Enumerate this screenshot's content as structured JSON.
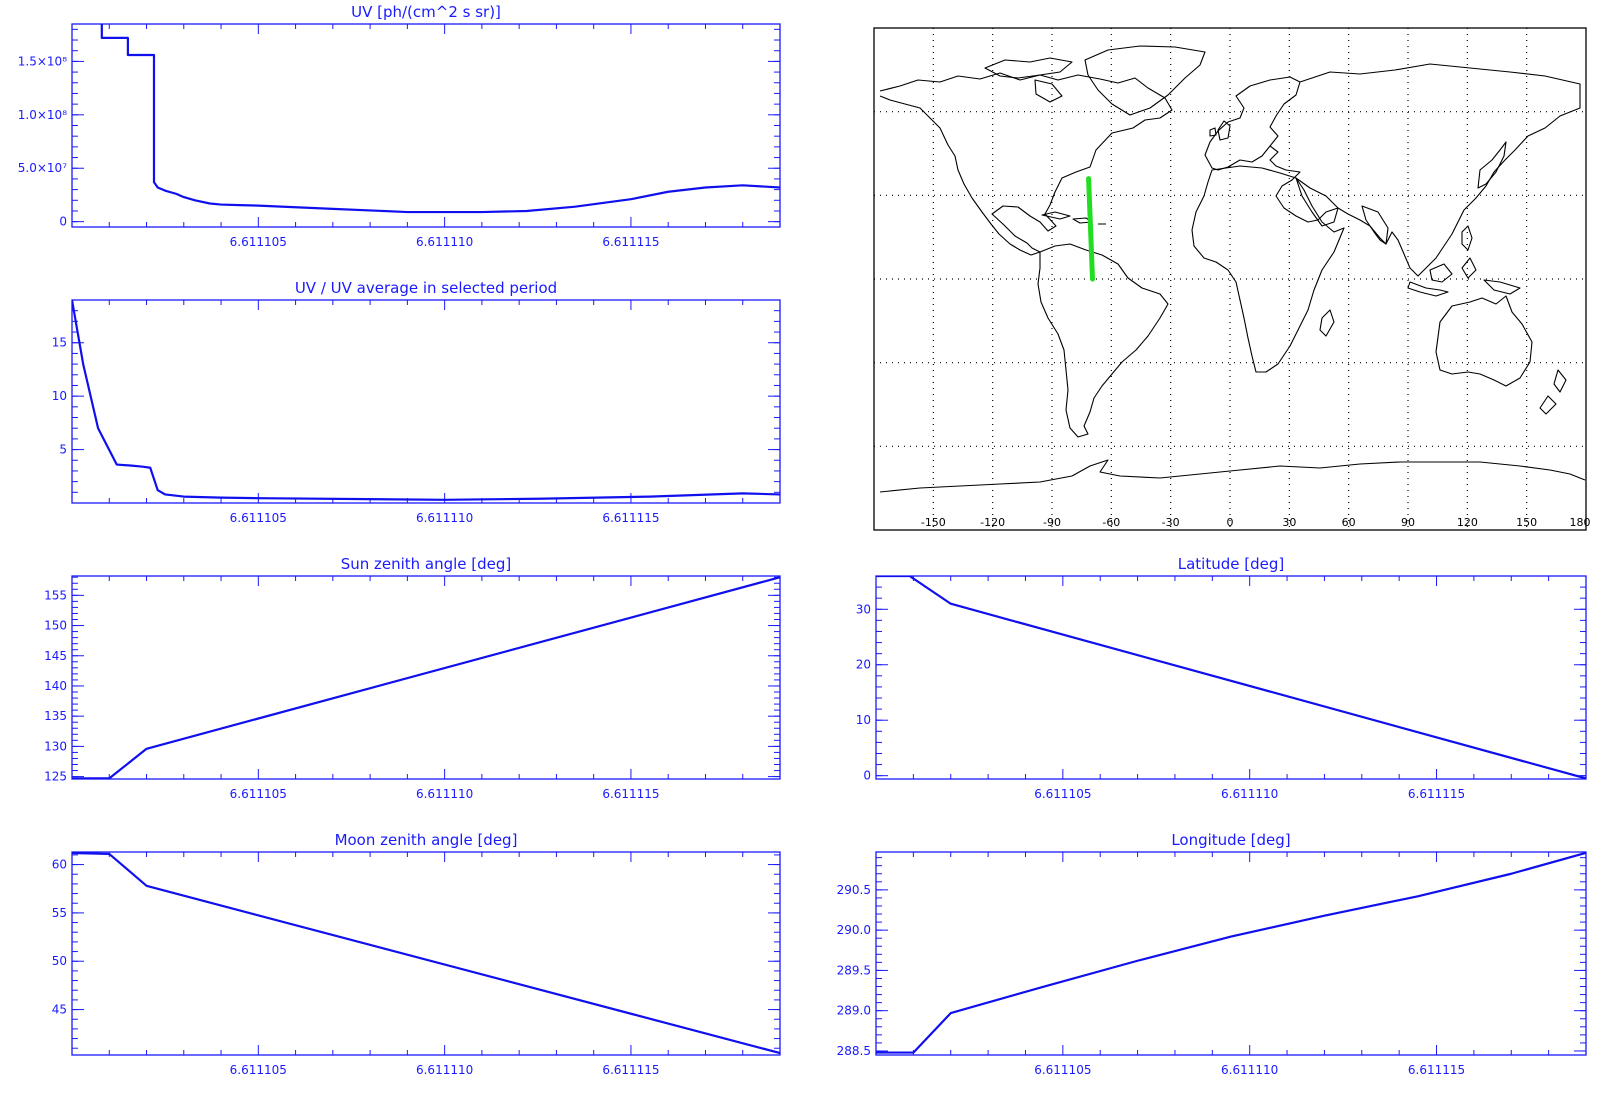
{
  "chart_data": [
    {
      "id": "uv",
      "type": "line",
      "title": "UV [ph/(cm^2 s sr)]",
      "xlabel": "",
      "ylabel": "",
      "xlim": [
        6.6111,
        6.611119
      ],
      "ylim": [
        -5000000,
        185000000
      ],
      "xticks": [
        6.611105,
        6.61111,
        6.611115
      ],
      "xtick_labels": [
        "6.611105",
        "6.611110",
        "6.611115"
      ],
      "yticks": [
        0,
        50000000,
        100000000,
        150000000
      ],
      "ytick_labels": [
        "0",
        "5.0×10⁷",
        "1.0×10⁸",
        "1.5×10⁸"
      ],
      "step": true,
      "x": [
        6.6111,
        6.6111008,
        6.6111008,
        6.6111015,
        6.6111015,
        6.6111022,
        6.6111022,
        6.6111023,
        6.6111025,
        6.6111028,
        6.611103,
        6.6111033,
        6.6111037,
        6.611104,
        6.6111045,
        6.611105,
        6.611107,
        6.611109,
        6.611111,
        6.6111122,
        6.6111135,
        6.611115,
        6.611116,
        6.611117,
        6.611118,
        6.611119
      ],
      "y": [
        190000000,
        190000000,
        172000000,
        172000000,
        156000000,
        156000000,
        37000000,
        32000000,
        29000000,
        26000000,
        23000000,
        20000000,
        17000000,
        16000000,
        15500000,
        15000000,
        12000000,
        9000000,
        9000000,
        10000000,
        14000000,
        21000000,
        28000000,
        32000000,
        34000000,
        32000000
      ]
    },
    {
      "id": "uvratio",
      "type": "line",
      "title": "UV / UV average in selected period",
      "xlabel": "",
      "ylabel": "",
      "xlim": [
        6.6111,
        6.611119
      ],
      "ylim": [
        0,
        19
      ],
      "xticks": [
        6.611105,
        6.61111,
        6.611115
      ],
      "xtick_labels": [
        "6.611105",
        "6.611110",
        "6.611115"
      ],
      "yticks": [
        5,
        10,
        15
      ],
      "ytick_labels": [
        "5",
        "10",
        "15"
      ],
      "x": [
        6.6111,
        6.6111003,
        6.6111007,
        6.6111012,
        6.6111016,
        6.6111019,
        6.6111021,
        6.6111023,
        6.6111025,
        6.611103,
        6.611104,
        6.611105,
        6.61111,
        6.6111125,
        6.6111155,
        6.611118,
        6.611119
      ],
      "y": [
        19,
        13,
        7,
        3.6,
        3.5,
        3.4,
        3.3,
        1.2,
        0.8,
        0.6,
        0.5,
        0.45,
        0.3,
        0.4,
        0.6,
        0.9,
        0.8
      ]
    },
    {
      "id": "sza",
      "type": "line",
      "title": "Sun zenith angle [deg]",
      "xlabel": "",
      "ylabel": "",
      "xlim": [
        6.6111,
        6.611119
      ],
      "ylim": [
        124.6,
        158.2
      ],
      "xticks": [
        6.611105,
        6.61111,
        6.611115
      ],
      "xtick_labels": [
        "6.611105",
        "6.611110",
        "6.611115"
      ],
      "yticks": [
        125,
        130,
        135,
        140,
        145,
        150,
        155
      ],
      "ytick_labels": [
        "125",
        "130",
        "135",
        "140",
        "145",
        "150",
        "155"
      ],
      "x": [
        6.6111,
        6.611101,
        6.611102,
        6.611119
      ],
      "y": [
        124.7,
        124.7,
        129.6,
        158.0
      ]
    },
    {
      "id": "lat",
      "type": "line",
      "title": "Latitude [deg]",
      "xlabel": "",
      "ylabel": "",
      "xlim": [
        6.6111,
        6.611119
      ],
      "ylim": [
        -0.6,
        36
      ],
      "xticks": [
        6.611105,
        6.61111,
        6.611115
      ],
      "xtick_labels": [
        "6.611105",
        "6.611110",
        "6.611115"
      ],
      "yticks": [
        0,
        10,
        20,
        30
      ],
      "ytick_labels": [
        "0",
        "10",
        "20",
        "30"
      ],
      "x": [
        6.6111,
        6.6111009,
        6.611102,
        6.611119
      ],
      "y": [
        36,
        36,
        31,
        -0.5
      ]
    },
    {
      "id": "mza",
      "type": "line",
      "title": "Moon zenith angle [deg]",
      "xlabel": "",
      "ylabel": "",
      "xlim": [
        6.6111,
        6.611119
      ],
      "ylim": [
        40.3,
        61.3
      ],
      "xticks": [
        6.611105,
        6.61111,
        6.611115
      ],
      "xtick_labels": [
        "6.611105",
        "6.611110",
        "6.611115"
      ],
      "yticks": [
        45,
        50,
        55,
        60
      ],
      "ytick_labels": [
        "45",
        "50",
        "55",
        "60"
      ],
      "x": [
        6.6111,
        6.611101,
        6.611102,
        6.611119
      ],
      "y": [
        61.2,
        61.1,
        57.8,
        40.5
      ]
    },
    {
      "id": "lon",
      "type": "line",
      "title": "Longitude [deg]",
      "xlabel": "",
      "ylabel": "",
      "xlim": [
        6.6111,
        6.611119
      ],
      "ylim": [
        288.45,
        290.97
      ],
      "xticks": [
        6.611105,
        6.61111,
        6.611115
      ],
      "xtick_labels": [
        "6.611105",
        "6.611110",
        "6.611115"
      ],
      "yticks": [
        288.5,
        289.0,
        289.5,
        290.0,
        290.5
      ],
      "ytick_labels": [
        "288.5",
        "289.0",
        "289.5",
        "290.0",
        "290.5"
      ],
      "x": [
        6.6111,
        6.611101,
        6.611102,
        6.6111045,
        6.611107,
        6.6111095,
        6.611112,
        6.6111145,
        6.611117,
        6.611119
      ],
      "y": [
        288.48,
        288.48,
        288.97,
        289.3,
        289.62,
        289.92,
        290.18,
        290.42,
        290.7,
        290.96
      ]
    }
  ],
  "map": {
    "xtick_labels": [
      "-150",
      "-120",
      "-90",
      "-60",
      "-30",
      "0",
      "30",
      "60",
      "90",
      "120",
      "150",
      "180"
    ],
    "track_color": "#22dd22",
    "track": {
      "start": {
        "lon": -71.5,
        "lat": 36
      },
      "end": {
        "lon": -69.5,
        "lat": 0
      }
    }
  }
}
